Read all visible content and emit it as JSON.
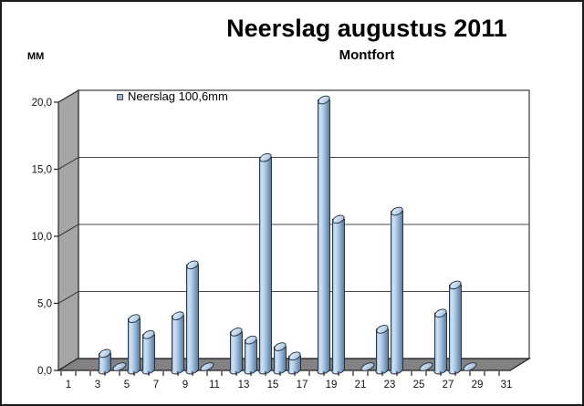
{
  "header": {
    "title": "Neerslag augustus 2011",
    "subtitle": "Montfort"
  },
  "legend": {
    "label": "Neerslag 100,6mm"
  },
  "y_axis": {
    "unit_label": "MM",
    "tick_labels": [
      "0,0",
      "5,0",
      "10,0",
      "15,0",
      "20,0"
    ],
    "min": 0,
    "max": 20,
    "step": 5
  },
  "x_axis": {
    "labeled_days": [
      1,
      3,
      5,
      7,
      9,
      11,
      13,
      15,
      17,
      19,
      21,
      23,
      25,
      27,
      29,
      31
    ]
  },
  "chart_data": {
    "type": "bar",
    "style": "3d-cylinder",
    "title": "Neerslag augustus 2011",
    "subtitle": "Montfort",
    "xlabel": "",
    "ylabel": "MM",
    "series": [
      {
        "name": "Neerslag 100,6mm",
        "total_mm": 100.6,
        "values": [
          0,
          0,
          1.2,
          0.2,
          3.8,
          2.6,
          0,
          4.0,
          7.8,
          0.2,
          0,
          2.8,
          2.2,
          15.8,
          1.7,
          1.0,
          0,
          20.1,
          11.2,
          0,
          0.3,
          3.0,
          11.8,
          0,
          0.2,
          4.2,
          6.3,
          0.2,
          0,
          0,
          0
        ]
      }
    ],
    "x": [
      1,
      2,
      3,
      4,
      5,
      6,
      7,
      8,
      9,
      10,
      11,
      12,
      13,
      14,
      15,
      16,
      17,
      18,
      19,
      20,
      21,
      22,
      23,
      24,
      25,
      26,
      27,
      28,
      29,
      30,
      31
    ],
    "ylim": [
      0,
      20
    ],
    "ytick_step": 5,
    "xtick_label_interval": 2,
    "grid": true,
    "legend_position": "top-left-inside",
    "decimal_separator": ","
  },
  "colors": {
    "bar_outline": "#1c2b3d",
    "bar_light": "#d2e2f2",
    "bar_mid": "#a9c6e2",
    "bar_dark": "#5f7d9d",
    "back_wall": "#ffffff",
    "side_wall": "#a6a6a6",
    "floor": "#828282",
    "gridline": "#4b4b4b",
    "axis_text": "#111111",
    "legend_marker": "#9ab5d3"
  }
}
